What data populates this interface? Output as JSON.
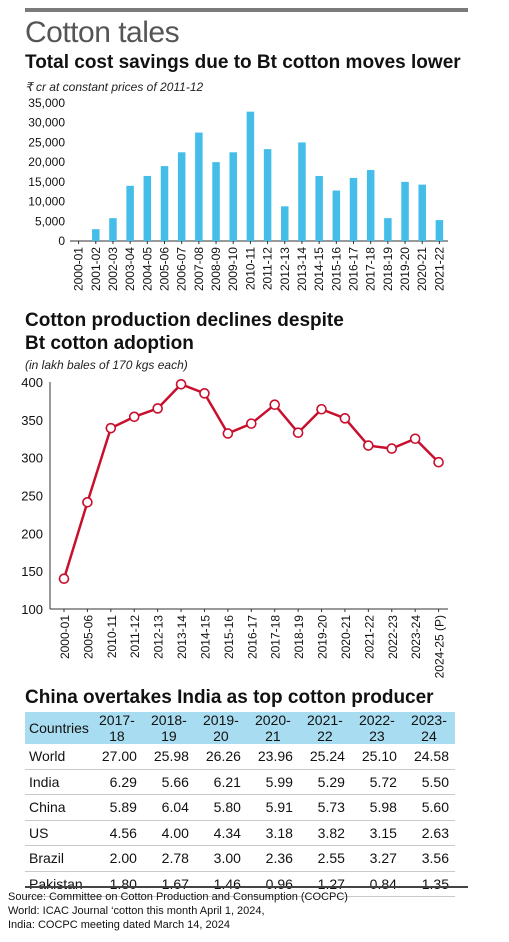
{
  "header": {
    "title": "Cotton tales"
  },
  "chart1": {
    "heading": "Total cost savings due to Bt cotton moves lower",
    "subtitle": "₹ cr at constant prices of 2011-12"
  },
  "chart2": {
    "heading_line1": "Cotton production declines despite",
    "heading_line2": "Bt cotton adoption",
    "subtitle": "(in lakh bales of 170 kgs each)"
  },
  "table": {
    "heading": "China overtakes India as top cotton producer",
    "columns": [
      "Countries",
      "2017-18",
      "2018-19",
      "2019-20",
      "2020-21",
      "2021-22",
      "2022-23",
      "2023-24"
    ],
    "rows": [
      [
        "World",
        "27.00",
        "25.98",
        "26.26",
        "23.96",
        "25.24",
        "25.10",
        "24.58"
      ],
      [
        "India",
        "6.29",
        "5.66",
        "6.21",
        "5.99",
        "5.29",
        "5.72",
        "5.50"
      ],
      [
        "China",
        "5.89",
        "6.04",
        "5.80",
        "5.91",
        "5.73",
        "5.98",
        "5.60"
      ],
      [
        "US",
        "4.56",
        "4.00",
        "4.34",
        "3.18",
        "3.82",
        "3.15",
        "2.63"
      ],
      [
        "Brazil",
        "2.00",
        "2.78",
        "3.00",
        "2.36",
        "2.55",
        "3.27",
        "3.56"
      ],
      [
        "Pakistan",
        "1.80",
        "1.67",
        "1.46",
        "0.96",
        "1.27",
        "0.84",
        "1.35"
      ]
    ]
  },
  "source": {
    "line1": "Source: Committee on Cotton Production and Consumption (COCPC)",
    "line2": "World: ICAC Journal ‘cotton this month April 1, 2024,",
    "line3": "India: COCPC meeting dated March 14, 2024"
  },
  "colors": {
    "bar": "#45bde9",
    "line": "#c8102e",
    "marker_fill": "#ffffff",
    "table_header": "#a8dcf0"
  },
  "chart_data": [
    {
      "type": "bar",
      "title": "Total cost savings due to Bt cotton moves lower",
      "ylabel": "₹ cr at constant prices of 2011-12",
      "categories": [
        "2000-01",
        "2001-02",
        "2002-03",
        "2003-04",
        "2004-05",
        "2005-06",
        "2006-07",
        "2007-08",
        "2008-09",
        "2009-10",
        "2010-11",
        "2011-12",
        "2012-13",
        "2013-14",
        "2014-15",
        "2015-16",
        "2016-17",
        "2017-18",
        "2018-19",
        "2019-20",
        "2020-21",
        "2021-22"
      ],
      "values": [
        0,
        3000,
        5800,
        14000,
        16500,
        19000,
        22500,
        27500,
        20000,
        22500,
        32800,
        23300,
        8800,
        25000,
        16500,
        12800,
        16000,
        18000,
        5800,
        15000,
        14300,
        5300
      ],
      "ylim": [
        0,
        35000
      ],
      "yticks": [
        0,
        5000,
        10000,
        15000,
        20000,
        25000,
        30000,
        35000
      ],
      "ytick_labels": [
        "0",
        "5,000",
        "10,000",
        "15,000",
        "20,000",
        "25,000",
        "30,000",
        "35,000"
      ],
      "grid": false
    },
    {
      "type": "line",
      "title": "Cotton production declines despite Bt cotton adoption",
      "ylabel": "(in lakh bales of 170 kgs each)",
      "categories": [
        "2000-01",
        "2005-06",
        "2010-11",
        "2011-12",
        "2012-13",
        "2013-14",
        "2014-15",
        "2015-16",
        "2016-17",
        "2017-18",
        "2018-19",
        "2019-20",
        "2020-21",
        "2021-22",
        "2022-23",
        "2023-24",
        "2024-25 (P)"
      ],
      "values": [
        140,
        241,
        339,
        354,
        365,
        397,
        385,
        332,
        345,
        370,
        333,
        364,
        352,
        316,
        312,
        325,
        294
      ],
      "ylim": [
        100,
        400
      ],
      "yticks": [
        100,
        150,
        200,
        250,
        300,
        350,
        400
      ],
      "grid": false
    }
  ]
}
